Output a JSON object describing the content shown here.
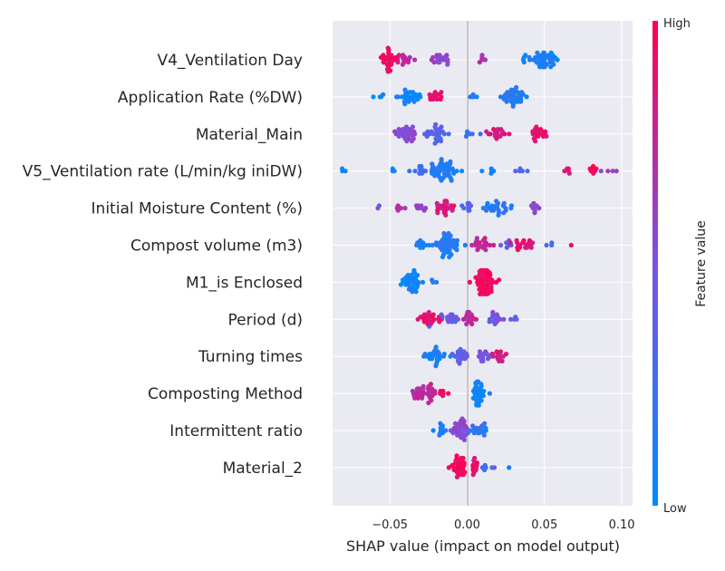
{
  "chart_data": {
    "type": "scatter",
    "subtype": "shap-beeswarm",
    "xlabel": "SHAP value (impact on model output)",
    "xlim": [
      -0.087,
      0.107
    ],
    "xticks": [
      {
        "value": -0.05,
        "label": "−0.05"
      },
      {
        "value": 0.0,
        "label": "0.00"
      },
      {
        "value": 0.05,
        "label": "0.05"
      },
      {
        "value": 0.1,
        "label": "0.10"
      }
    ],
    "colorbar": {
      "title": "Feature value",
      "high_label": "High",
      "low_label": "Low",
      "low_color": "#008bfb",
      "high_color": "#ff0052"
    },
    "grid": true,
    "background_color": "#eaeaf2",
    "features": [
      {
        "name": "V4_Ventilation Day",
        "clusters": [
          {
            "center": -0.05,
            "spread": 0.006,
            "count": 28,
            "value": 0.95
          },
          {
            "center": -0.04,
            "spread": 0.005,
            "count": 14,
            "value": 0.75
          },
          {
            "center": -0.017,
            "spread": 0.005,
            "count": 18,
            "value": 0.55
          },
          {
            "center": 0.01,
            "spread": 0.004,
            "count": 5,
            "value": 0.7
          },
          {
            "center": 0.05,
            "spread": 0.009,
            "count": 40,
            "value": 0.1
          },
          {
            "center": 0.037,
            "spread": 0.002,
            "count": 5,
            "value": 0.05
          }
        ]
      },
      {
        "name": "Application Rate (%DW)",
        "clusters": [
          {
            "center": -0.038,
            "spread": 0.006,
            "count": 25,
            "value": 0.08
          },
          {
            "center": -0.02,
            "spread": 0.005,
            "count": 14,
            "value": 0.9
          },
          {
            "center": -0.06,
            "spread": 0.005,
            "count": 4,
            "value": 0.05
          },
          {
            "center": 0.005,
            "spread": 0.006,
            "count": 4,
            "value": 0.1
          },
          {
            "center": 0.03,
            "spread": 0.006,
            "count": 35,
            "value": 0.15
          }
        ]
      },
      {
        "name": "Material_Main",
        "clusters": [
          {
            "center": -0.04,
            "spread": 0.008,
            "count": 30,
            "value": 0.55
          },
          {
            "center": -0.02,
            "spread": 0.006,
            "count": 25,
            "value": 0.35
          },
          {
            "center": 0.005,
            "spread": 0.004,
            "count": 6,
            "value": 0.2
          },
          {
            "center": 0.02,
            "spread": 0.006,
            "count": 18,
            "value": 0.85
          },
          {
            "center": 0.045,
            "spread": 0.005,
            "count": 20,
            "value": 0.9
          }
        ]
      },
      {
        "name": "V5_Ventilation rate (L/min/kg iniDW)",
        "clusters": [
          {
            "center": -0.08,
            "spread": 0.0015,
            "count": 3,
            "value": 0.05
          },
          {
            "center": -0.05,
            "spread": 0.003,
            "count": 3,
            "value": 0.1
          },
          {
            "center": -0.03,
            "spread": 0.006,
            "count": 12,
            "value": 0.25
          },
          {
            "center": -0.015,
            "spread": 0.006,
            "count": 45,
            "value": 0.12
          },
          {
            "center": 0.015,
            "spread": 0.004,
            "count": 5,
            "value": 0.1
          },
          {
            "center": 0.035,
            "spread": 0.005,
            "count": 5,
            "value": 0.3
          },
          {
            "center": 0.065,
            "spread": 0.002,
            "count": 5,
            "value": 0.85
          },
          {
            "center": 0.082,
            "spread": 0.002,
            "count": 8,
            "value": 0.95
          },
          {
            "center": 0.093,
            "spread": 0.004,
            "count": 4,
            "value": 0.6
          }
        ]
      },
      {
        "name": "Initial Moisture Content (%)",
        "clusters": [
          {
            "center": -0.058,
            "spread": 0.002,
            "count": 2,
            "value": 0.5
          },
          {
            "center": -0.045,
            "spread": 0.004,
            "count": 6,
            "value": 0.7
          },
          {
            "center": -0.03,
            "spread": 0.004,
            "count": 8,
            "value": 0.6
          },
          {
            "center": -0.015,
            "spread": 0.004,
            "count": 25,
            "value": 0.85
          },
          {
            "center": 0.0,
            "spread": 0.003,
            "count": 10,
            "value": 0.35
          },
          {
            "center": 0.02,
            "spread": 0.008,
            "count": 25,
            "value": 0.15
          },
          {
            "center": 0.045,
            "spread": 0.005,
            "count": 8,
            "value": 0.55
          }
        ]
      },
      {
        "name": "Compost volume (m3)",
        "clusters": [
          {
            "center": -0.03,
            "spread": 0.007,
            "count": 12,
            "value": 0.08
          },
          {
            "center": -0.012,
            "spread": 0.006,
            "count": 45,
            "value": 0.15
          },
          {
            "center": 0.008,
            "spread": 0.006,
            "count": 20,
            "value": 0.75
          },
          {
            "center": 0.025,
            "spread": 0.004,
            "count": 6,
            "value": 0.4
          },
          {
            "center": 0.037,
            "spread": 0.005,
            "count": 20,
            "value": 0.88
          },
          {
            "center": 0.052,
            "spread": 0.003,
            "count": 3,
            "value": 0.3
          },
          {
            "center": 0.068,
            "spread": 0.001,
            "count": 1,
            "value": 0.9
          }
        ]
      },
      {
        "name": "M1_is Enclosed",
        "clusters": [
          {
            "center": -0.036,
            "spread": 0.005,
            "count": 35,
            "value": 0.05
          },
          {
            "center": -0.022,
            "spread": 0.002,
            "count": 3,
            "value": 0.1
          },
          {
            "center": 0.012,
            "spread": 0.006,
            "count": 55,
            "value": 0.97
          }
        ]
      },
      {
        "name": "Period (d)",
        "clusters": [
          {
            "center": -0.025,
            "spread": 0.008,
            "count": 25,
            "value": 0.9
          },
          {
            "center": -0.01,
            "spread": 0.006,
            "count": 18,
            "value": 0.4
          },
          {
            "center": 0.002,
            "spread": 0.005,
            "count": 15,
            "value": 0.75
          },
          {
            "center": 0.018,
            "spread": 0.005,
            "count": 15,
            "value": 0.45
          },
          {
            "center": 0.03,
            "spread": 0.003,
            "count": 4,
            "value": 0.4
          }
        ]
      },
      {
        "name": "Turning times",
        "clusters": [
          {
            "center": -0.02,
            "spread": 0.006,
            "count": 25,
            "value": 0.1
          },
          {
            "center": -0.005,
            "spread": 0.004,
            "count": 20,
            "value": 0.35
          },
          {
            "center": 0.01,
            "spread": 0.005,
            "count": 15,
            "value": 0.5
          },
          {
            "center": 0.02,
            "spread": 0.005,
            "count": 15,
            "value": 0.8
          }
        ]
      },
      {
        "name": "Composting Method",
        "clusters": [
          {
            "center": -0.028,
            "spread": 0.007,
            "count": 35,
            "value": 0.72
          },
          {
            "center": -0.016,
            "spread": 0.003,
            "count": 6,
            "value": 0.95
          },
          {
            "center": 0.008,
            "spread": 0.004,
            "count": 35,
            "value": 0.05
          }
        ]
      },
      {
        "name": "Intermittent ratio",
        "clusters": [
          {
            "center": -0.018,
            "spread": 0.004,
            "count": 12,
            "value": 0.1
          },
          {
            "center": -0.005,
            "spread": 0.005,
            "count": 30,
            "value": 0.55
          },
          {
            "center": 0.008,
            "spread": 0.005,
            "count": 20,
            "value": 0.2
          }
        ]
      },
      {
        "name": "Material_2",
        "clusters": [
          {
            "center": -0.005,
            "spread": 0.004,
            "count": 30,
            "value": 0.97
          },
          {
            "center": 0.005,
            "spread": 0.003,
            "count": 12,
            "value": 0.9
          },
          {
            "center": 0.012,
            "spread": 0.004,
            "count": 6,
            "value": 0.3
          },
          {
            "center": 0.027,
            "spread": 0.001,
            "count": 1,
            "value": 0.05
          }
        ]
      }
    ]
  }
}
